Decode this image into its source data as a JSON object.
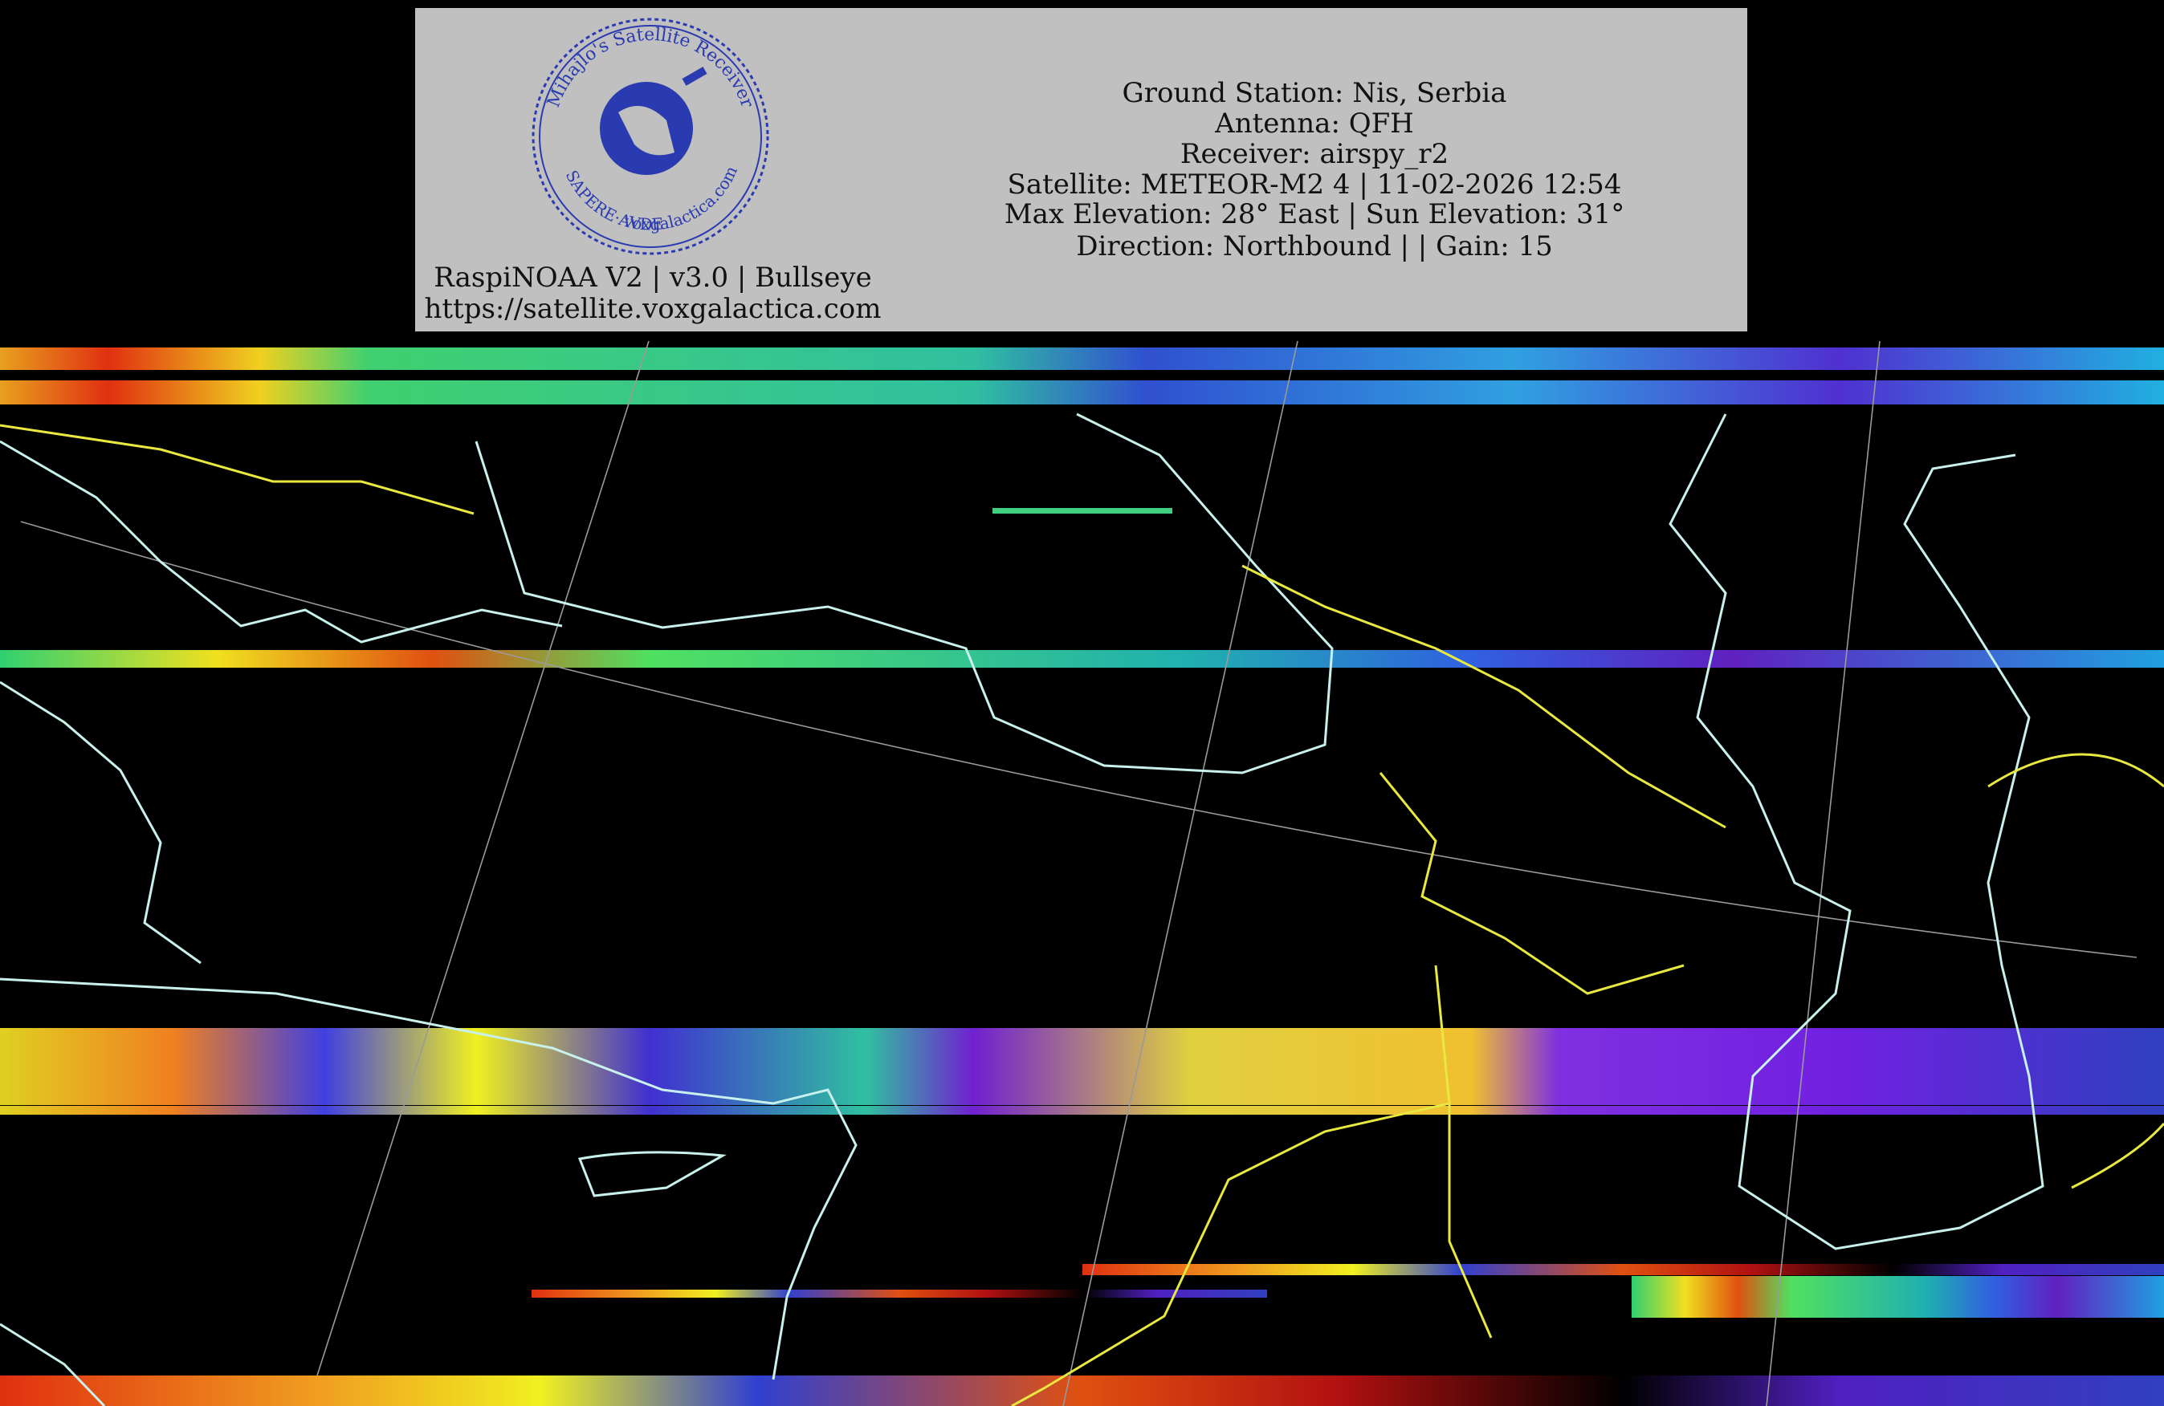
{
  "header": {
    "logo": {
      "ring_top": "Mihajlo's Satellite Receiver",
      "ring_bottom": "SAPERE·AVDE",
      "url": "voxgalactica.com"
    },
    "software": "RaspiNOAA V2 | v3.0 | Bullseye",
    "website": "https://satellite.voxgalactica.com",
    "pass_info": [
      "Ground Station: Nis, Serbia",
      "Antenna: QFH",
      "Receiver: airspy_r2",
      "Satellite: METEOR-M2 4 | 11-02-2026 12:54",
      "Max Elevation: 28° East | Sun Elevation: 31°",
      "Direction: Northbound | | Gain: 15"
    ]
  }
}
